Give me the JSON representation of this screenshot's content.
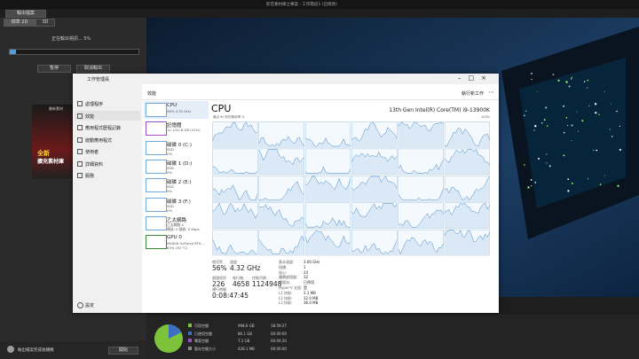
{
  "app": {
    "title": "影音素材庫之專案 - 工作階段1 (已修改)",
    "tab_output": "輸出檔案",
    "tab_2d": "標準 2D",
    "tab_3d": "3D",
    "progress_text": "正在輸出視訊... 5%",
    "pause": "暫停",
    "cancel": "取消輸出",
    "ad_top": "最新素材",
    "ad_title": "全新",
    "ad_sub": "擴充素材庫",
    "bottom_check": "輸出檔案完成後關機",
    "start": "開始",
    "disk": [
      {
        "label": "可用空間",
        "value": "998.6 GB",
        "time": "18:59:27"
      },
      {
        "label": "已使用空間",
        "value": "86.1 GB",
        "time": "00:00:00"
      },
      {
        "label": "專案空間",
        "value": "7.2 GB",
        "time": "00:04:20"
      },
      {
        "label": "暫存空間大小",
        "value": "428.1 MB",
        "time": "00:00:00"
      }
    ]
  },
  "taskmgr": {
    "title": "工作管理員",
    "nav": [
      "處理程序",
      "效能",
      "應用程式歷程記錄",
      "啟動應用程式",
      "使用者",
      "詳細資料",
      "服務"
    ],
    "settings": "設定",
    "section": "效能",
    "run_task": "執行新工作",
    "devices": [
      {
        "name": "CPU",
        "detail": "56%  4.32 GHz"
      },
      {
        "name": "記憶體",
        "detail": "11.1/31.8 GB (41%)"
      },
      {
        "name": "磁碟 0 (C:)",
        "detail": "SSD",
        "usage": "0%"
      },
      {
        "name": "磁碟 1 (D:)",
        "detail": "SSD",
        "usage": "0%"
      },
      {
        "name": "磁碟 2 (E:)",
        "detail": "SSD",
        "usage": "0%"
      },
      {
        "name": "磁碟 3 (F:)",
        "detail": "SSD",
        "usage": "0%"
      },
      {
        "name": "乙太網路",
        "detail": "乙太網路 4",
        "usage": "傳送: 0 接收: 0 Kbps"
      },
      {
        "name": "GPU 0",
        "detail": "NVIDIA GeForce RTX...",
        "usage": "63% (30 °C)"
      }
    ],
    "cpu": {
      "heading": "CPU",
      "model": "13th Gen Intel(R) Core(TM) i9-13900K",
      "graph_label": "最近 60 秒的使用率 %",
      "graph_max": "100%",
      "stats": [
        {
          "label": "使用率",
          "value": "56%"
        },
        {
          "label": "速度",
          "value": "4.32 GHz"
        },
        {
          "label": "處理程序",
          "value": "226"
        },
        {
          "label": "執行緒",
          "value": "4658"
        },
        {
          "label": "控制代碼",
          "value": "1124948"
        }
      ],
      "uptime": {
        "label": "運行時間",
        "value": "0:08:47:45"
      },
      "specs": [
        {
          "label": "基本速度:",
          "value": "3.00 GHz"
        },
        {
          "label": "插槽:",
          "value": "1"
        },
        {
          "label": "核心:",
          "value": "24"
        },
        {
          "label": "邏輯處理器:",
          "value": "32"
        },
        {
          "label": "虛擬化:",
          "value": "已停用"
        },
        {
          "label": "Hyper-V 支援:",
          "value": "是"
        },
        {
          "label": "L1 快取:",
          "value": "2.1 MB"
        },
        {
          "label": "L2 快取:",
          "value": "32.0 MB"
        },
        {
          "label": "L3 快取:",
          "value": "36.0 MB"
        }
      ]
    }
  }
}
